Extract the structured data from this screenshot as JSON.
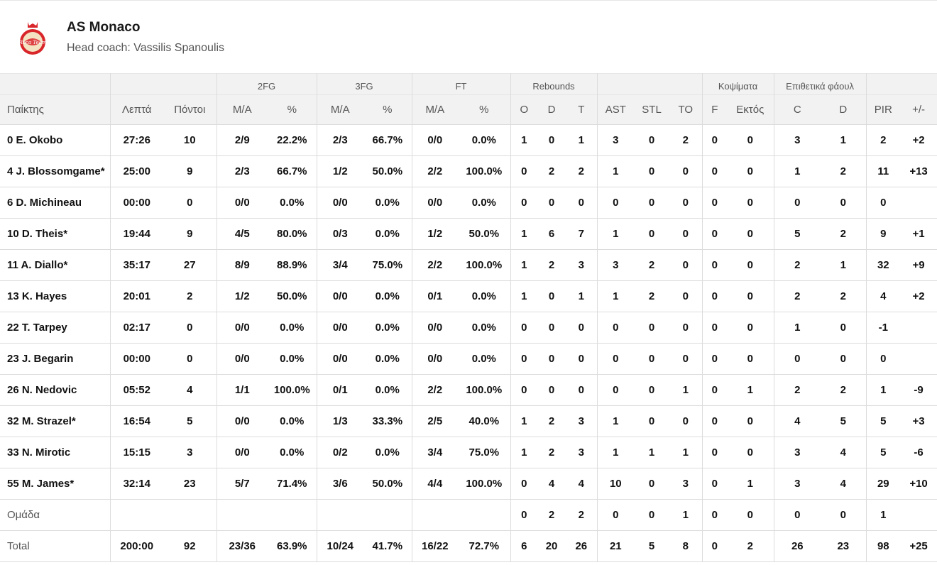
{
  "team": {
    "name": "AS Monaco",
    "coach": "Head coach: Vassilis Spanoulis",
    "logo_text": "Roca Team",
    "logo_colors": {
      "red": "#d9262b",
      "cream": "#f3e3c2"
    }
  },
  "headers": {
    "groups": {
      "fg2": "2FG",
      "fg3": "3FG",
      "ft": "FT",
      "rebounds": "Rebounds",
      "blocks": "Κοψίματα",
      "fouls": "Επιθετικά φάουλ"
    },
    "columns": [
      "Παίκτης",
      "Λεπτά",
      "Πόντοι",
      "M/A",
      "%",
      "M/A",
      "%",
      "M/A",
      "%",
      "O",
      "D",
      "T",
      "AST",
      "STL",
      "TO",
      "F",
      "Εκτός",
      "C",
      "D",
      "PIR",
      "+/-"
    ]
  },
  "rows": [
    [
      "0 E. Okobo",
      "27:26",
      "10",
      "2/9",
      "22.2%",
      "2/3",
      "66.7%",
      "0/0",
      "0.0%",
      "1",
      "0",
      "1",
      "3",
      "0",
      "2",
      "0",
      "0",
      "3",
      "1",
      "2",
      "+2"
    ],
    [
      "4 J. Blossomgame*",
      "25:00",
      "9",
      "2/3",
      "66.7%",
      "1/2",
      "50.0%",
      "2/2",
      "100.0%",
      "0",
      "2",
      "2",
      "1",
      "0",
      "0",
      "0",
      "0",
      "1",
      "2",
      "11",
      "+13"
    ],
    [
      "6 D. Michineau",
      "00:00",
      "0",
      "0/0",
      "0.0%",
      "0/0",
      "0.0%",
      "0/0",
      "0.0%",
      "0",
      "0",
      "0",
      "0",
      "0",
      "0",
      "0",
      "0",
      "0",
      "0",
      "0",
      ""
    ],
    [
      "10 D. Theis*",
      "19:44",
      "9",
      "4/5",
      "80.0%",
      "0/3",
      "0.0%",
      "1/2",
      "50.0%",
      "1",
      "6",
      "7",
      "1",
      "0",
      "0",
      "0",
      "0",
      "5",
      "2",
      "9",
      "+1"
    ],
    [
      "11 A. Diallo*",
      "35:17",
      "27",
      "8/9",
      "88.9%",
      "3/4",
      "75.0%",
      "2/2",
      "100.0%",
      "1",
      "2",
      "3",
      "3",
      "2",
      "0",
      "0",
      "0",
      "2",
      "1",
      "32",
      "+9"
    ],
    [
      "13 K. Hayes",
      "20:01",
      "2",
      "1/2",
      "50.0%",
      "0/0",
      "0.0%",
      "0/1",
      "0.0%",
      "1",
      "0",
      "1",
      "1",
      "2",
      "0",
      "0",
      "0",
      "2",
      "2",
      "4",
      "+2"
    ],
    [
      "22 T. Tarpey",
      "02:17",
      "0",
      "0/0",
      "0.0%",
      "0/0",
      "0.0%",
      "0/0",
      "0.0%",
      "0",
      "0",
      "0",
      "0",
      "0",
      "0",
      "0",
      "0",
      "1",
      "0",
      "-1",
      ""
    ],
    [
      "23 J. Begarin",
      "00:00",
      "0",
      "0/0",
      "0.0%",
      "0/0",
      "0.0%",
      "0/0",
      "0.0%",
      "0",
      "0",
      "0",
      "0",
      "0",
      "0",
      "0",
      "0",
      "0",
      "0",
      "0",
      ""
    ],
    [
      "26 N. Nedovic",
      "05:52",
      "4",
      "1/1",
      "100.0%",
      "0/1",
      "0.0%",
      "2/2",
      "100.0%",
      "0",
      "0",
      "0",
      "0",
      "0",
      "1",
      "0",
      "1",
      "2",
      "2",
      "1",
      "-9"
    ],
    [
      "32 M. Strazel*",
      "16:54",
      "5",
      "0/0",
      "0.0%",
      "1/3",
      "33.3%",
      "2/5",
      "40.0%",
      "1",
      "2",
      "3",
      "1",
      "0",
      "0",
      "0",
      "0",
      "4",
      "5",
      "5",
      "+3"
    ],
    [
      "33 N. Mirotic",
      "15:15",
      "3",
      "0/0",
      "0.0%",
      "0/2",
      "0.0%",
      "3/4",
      "75.0%",
      "1",
      "2",
      "3",
      "1",
      "1",
      "1",
      "0",
      "0",
      "3",
      "4",
      "5",
      "-6"
    ],
    [
      "55 M. James*",
      "32:14",
      "23",
      "5/7",
      "71.4%",
      "3/6",
      "50.0%",
      "4/4",
      "100.0%",
      "0",
      "4",
      "4",
      "10",
      "0",
      "3",
      "0",
      "1",
      "3",
      "4",
      "29",
      "+10"
    ]
  ],
  "team_row": [
    "Ομάδα",
    "",
    "",
    "",
    "",
    "",
    "",
    "",
    "",
    "0",
    "2",
    "2",
    "0",
    "0",
    "1",
    "0",
    "0",
    "0",
    "0",
    "1",
    ""
  ],
  "total_row": [
    "Total",
    "200:00",
    "92",
    "23/36",
    "63.9%",
    "10/24",
    "41.7%",
    "16/22",
    "72.7%",
    "6",
    "20",
    "26",
    "21",
    "5",
    "8",
    "0",
    "2",
    "26",
    "23",
    "98",
    "+25"
  ]
}
